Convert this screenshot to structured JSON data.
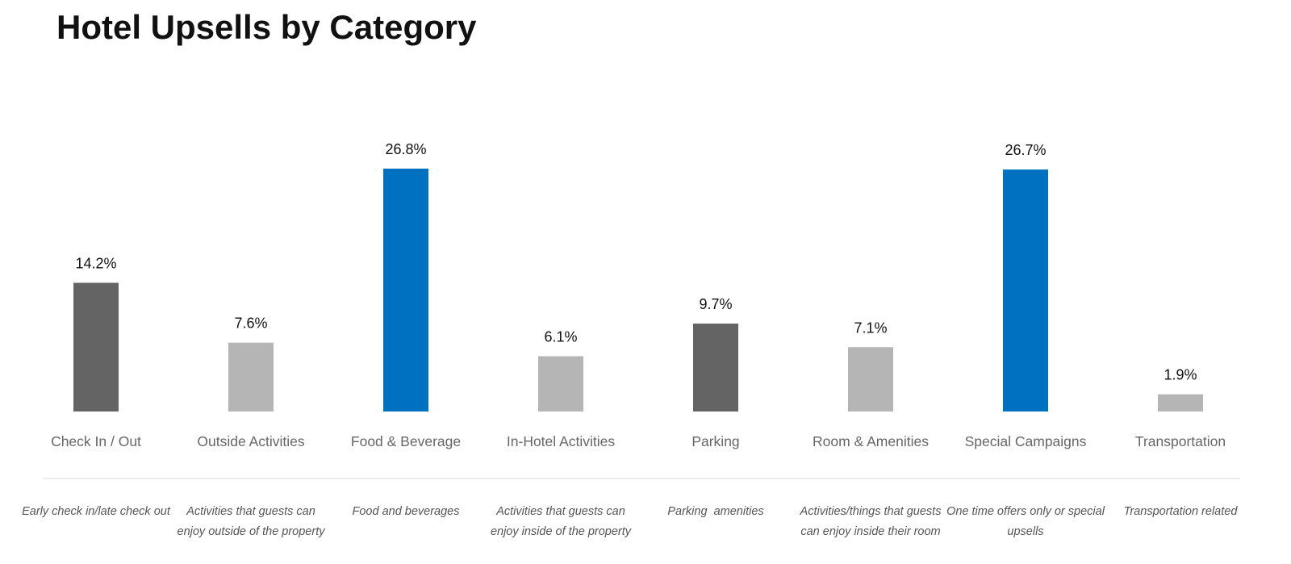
{
  "chart_data": {
    "type": "bar",
    "title": "Hotel Upsells by Category",
    "categories": [
      "Check In / Out",
      "Outside Activities",
      "Food & Beverage",
      "In-Hotel Activities",
      "Parking",
      "Room & Amenities",
      "Special Campaigns",
      "Transportation"
    ],
    "values": [
      14.2,
      7.6,
      26.8,
      6.1,
      9.7,
      7.1,
      26.7,
      1.9
    ],
    "value_labels": [
      "14.2%",
      "7.6%",
      "26.8%",
      "6.1%",
      "9.7%",
      "7.1%",
      "26.7%",
      "1.9%"
    ],
    "colors": [
      "#646464",
      "#b5b5b5",
      "#0070c0",
      "#b5b5b5",
      "#646464",
      "#b5b5b5",
      "#0070c0",
      "#b5b5b5"
    ],
    "descriptions": [
      "Early check in/late check out",
      "Activities that guests can enjoy outside of the property",
      "Food and beverages",
      "Activities that guests can enjoy inside of the property",
      "Parking  amenities",
      "Activities/things that guests can enjoy inside their room",
      "One time offers only or special upsells",
      "Transportation related"
    ]
  }
}
